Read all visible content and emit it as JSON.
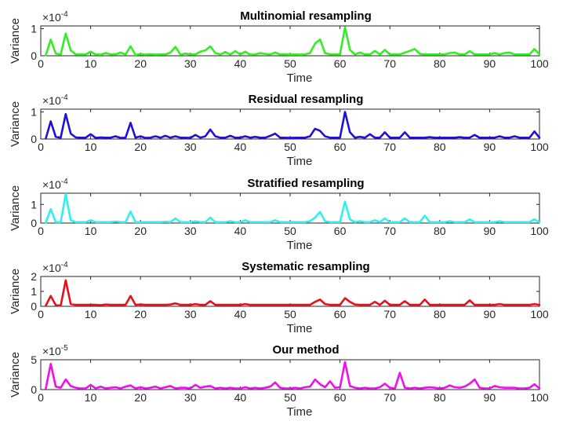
{
  "chart_data": [
    {
      "type": "line",
      "title": "Multinomial resampling",
      "xlabel": "Time",
      "ylabel": "Variance",
      "exponent": "-4",
      "color": "#33ee22",
      "xlim": [
        0,
        100
      ],
      "ylim": [
        0,
        1.1
      ],
      "xticks": [
        "0",
        "10",
        "20",
        "30",
        "40",
        "50",
        "60",
        "70",
        "80",
        "90",
        "100"
      ],
      "yticks": [
        {
          "v": 0,
          "label": "0"
        },
        {
          "v": 1,
          "label": "1"
        }
      ],
      "x": [
        1,
        2,
        3,
        4,
        5,
        6,
        7,
        8,
        9,
        10,
        11,
        12,
        13,
        14,
        15,
        16,
        17,
        18,
        19,
        20,
        21,
        22,
        23,
        24,
        25,
        26,
        27,
        28,
        29,
        30,
        31,
        32,
        33,
        34,
        35,
        36,
        37,
        38,
        39,
        40,
        41,
        42,
        43,
        44,
        45,
        46,
        47,
        48,
        49,
        50,
        51,
        52,
        53,
        54,
        55,
        56,
        57,
        58,
        59,
        60,
        61,
        62,
        63,
        64,
        65,
        66,
        67,
        68,
        69,
        70,
        71,
        72,
        73,
        74,
        75,
        76,
        77,
        78,
        79,
        80,
        81,
        82,
        83,
        84,
        85,
        86,
        87,
        88,
        89,
        90,
        91,
        92,
        93,
        94,
        95,
        96,
        97,
        98,
        99,
        100
      ],
      "y": [
        0.02,
        0.6,
        0.08,
        0.05,
        0.82,
        0.2,
        0.05,
        0.05,
        0.05,
        0.15,
        0.05,
        0.04,
        0.1,
        0.05,
        0.05,
        0.12,
        0.05,
        0.35,
        0.03,
        0.07,
        0.04,
        0.06,
        0.04,
        0.05,
        0.05,
        0.12,
        0.33,
        0.04,
        0.08,
        0.05,
        0.05,
        0.15,
        0.2,
        0.35,
        0.1,
        0.05,
        0.14,
        0.05,
        0.17,
        0.05,
        0.15,
        0.04,
        0.05,
        0.1,
        0.07,
        0.05,
        0.12,
        0.05,
        0.05,
        0.04,
        0.05,
        0.04,
        0.05,
        0.1,
        0.45,
        0.6,
        0.1,
        0.05,
        0.05,
        0.05,
        1.05,
        0.22,
        0.05,
        0.12,
        0.05,
        0.05,
        0.18,
        0.05,
        0.22,
        0.05,
        0.05,
        0.05,
        0.12,
        0.18,
        0.25,
        0.07,
        0.05,
        0.05,
        0.05,
        0.05,
        0.05,
        0.1,
        0.12,
        0.05,
        0.05,
        0.17,
        0.05,
        0.05,
        0.05,
        0.05,
        0.1,
        0.05,
        0.1,
        0.12,
        0.05,
        0.05,
        0.05,
        0.05,
        0.25,
        0.05
      ]
    },
    {
      "type": "line",
      "title": "Residual resampling",
      "xlabel": "Time",
      "ylabel": "Variance",
      "exponent": "-4",
      "color": "#2010d8",
      "xlim": [
        0,
        100
      ],
      "ylim": [
        0,
        1.1
      ],
      "xticks": [
        "0",
        "10",
        "20",
        "30",
        "40",
        "50",
        "60",
        "70",
        "80",
        "90",
        "100"
      ],
      "yticks": [
        {
          "v": 0,
          "label": "0"
        },
        {
          "v": 1,
          "label": "1"
        }
      ],
      "x": [
        1,
        2,
        3,
        4,
        5,
        6,
        7,
        8,
        9,
        10,
        11,
        12,
        13,
        14,
        15,
        16,
        17,
        18,
        19,
        20,
        21,
        22,
        23,
        24,
        25,
        26,
        27,
        28,
        29,
        30,
        31,
        32,
        33,
        34,
        35,
        36,
        37,
        38,
        39,
        40,
        41,
        42,
        43,
        44,
        45,
        46,
        47,
        48,
        49,
        50,
        51,
        52,
        53,
        54,
        55,
        56,
        57,
        58,
        59,
        60,
        61,
        62,
        63,
        64,
        65,
        66,
        67,
        68,
        69,
        70,
        71,
        72,
        73,
        74,
        75,
        76,
        77,
        78,
        79,
        80,
        81,
        82,
        83,
        84,
        85,
        86,
        87,
        88,
        89,
        90,
        91,
        92,
        93,
        94,
        95,
        96,
        97,
        98,
        99,
        100
      ],
      "y": [
        0.02,
        0.65,
        0.08,
        0.05,
        0.92,
        0.2,
        0.06,
        0.05,
        0.05,
        0.18,
        0.04,
        0.06,
        0.05,
        0.05,
        0.1,
        0.04,
        0.05,
        0.6,
        0.05,
        0.1,
        0.04,
        0.05,
        0.1,
        0.05,
        0.12,
        0.05,
        0.1,
        0.05,
        0.05,
        0.04,
        0.15,
        0.05,
        0.1,
        0.35,
        0.1,
        0.05,
        0.05,
        0.12,
        0.05,
        0.05,
        0.1,
        0.05,
        0.08,
        0.05,
        0.05,
        0.12,
        0.2,
        0.05,
        0.05,
        0.04,
        0.05,
        0.05,
        0.05,
        0.1,
        0.38,
        0.3,
        0.1,
        0.05,
        0.05,
        0.05,
        1.0,
        0.25,
        0.05,
        0.08,
        0.05,
        0.18,
        0.05,
        0.05,
        0.25,
        0.05,
        0.05,
        0.05,
        0.25,
        0.05,
        0.05,
        0.05,
        0.05,
        0.07,
        0.05,
        0.05,
        0.05,
        0.05,
        0.05,
        0.07,
        0.05,
        0.05,
        0.15,
        0.05,
        0.05,
        0.05,
        0.05,
        0.1,
        0.05,
        0.05,
        0.1,
        0.05,
        0.05,
        0.05,
        0.28,
        0.05
      ]
    },
    {
      "type": "line",
      "title": "Stratified resampling",
      "xlabel": "Time",
      "ylabel": "Variance",
      "exponent": "-4",
      "color": "#30f0ee",
      "xlim": [
        0,
        100
      ],
      "ylim": [
        0,
        1.6
      ],
      "xticks": [
        "0",
        "10",
        "20",
        "30",
        "40",
        "50",
        "60",
        "70",
        "80",
        "90",
        "100"
      ],
      "yticks": [
        {
          "v": 0,
          "label": "0"
        },
        {
          "v": 1,
          "label": "1"
        }
      ],
      "x": [
        1,
        2,
        3,
        4,
        5,
        6,
        7,
        8,
        9,
        10,
        11,
        12,
        13,
        14,
        15,
        16,
        17,
        18,
        19,
        20,
        21,
        22,
        23,
        24,
        25,
        26,
        27,
        28,
        29,
        30,
        31,
        32,
        33,
        34,
        35,
        36,
        37,
        38,
        39,
        40,
        41,
        42,
        43,
        44,
        45,
        46,
        47,
        48,
        49,
        50,
        51,
        52,
        53,
        54,
        55,
        56,
        57,
        58,
        59,
        60,
        61,
        62,
        63,
        64,
        65,
        66,
        67,
        68,
        69,
        70,
        71,
        72,
        73,
        74,
        75,
        76,
        77,
        78,
        79,
        80,
        81,
        82,
        83,
        84,
        85,
        86,
        87,
        88,
        89,
        90,
        91,
        92,
        93,
        94,
        95,
        96,
        97,
        98,
        99,
        100
      ],
      "y": [
        0.02,
        0.75,
        0.05,
        0.05,
        1.55,
        0.15,
        0.05,
        0.05,
        0.05,
        0.15,
        0.05,
        0.05,
        0.05,
        0.05,
        0.08,
        0.05,
        0.05,
        0.62,
        0.05,
        0.05,
        0.05,
        0.05,
        0.05,
        0.05,
        0.07,
        0.05,
        0.25,
        0.05,
        0.05,
        0.05,
        0.1,
        0.05,
        0.05,
        0.3,
        0.05,
        0.05,
        0.05,
        0.1,
        0.05,
        0.05,
        0.15,
        0.05,
        0.05,
        0.05,
        0.05,
        0.05,
        0.15,
        0.05,
        0.05,
        0.05,
        0.05,
        0.05,
        0.05,
        0.1,
        0.3,
        0.6,
        0.1,
        0.05,
        0.05,
        0.05,
        1.15,
        0.2,
        0.05,
        0.1,
        0.05,
        0.05,
        0.15,
        0.05,
        0.25,
        0.05,
        0.05,
        0.05,
        0.25,
        0.05,
        0.05,
        0.05,
        0.4,
        0.05,
        0.05,
        0.05,
        0.05,
        0.1,
        0.05,
        0.05,
        0.05,
        0.2,
        0.05,
        0.05,
        0.05,
        0.05,
        0.05,
        0.1,
        0.05,
        0.05,
        0.05,
        0.05,
        0.05,
        0.05,
        0.2,
        0.05
      ]
    },
    {
      "type": "line",
      "title": "Systematic resampling",
      "xlabel": "Time",
      "ylabel": "Variance",
      "exponent": "-4",
      "color": "#e8101a",
      "xlim": [
        0,
        100
      ],
      "ylim": [
        0,
        2
      ],
      "xticks": [
        "0",
        "10",
        "20",
        "30",
        "40",
        "50",
        "60",
        "70",
        "80",
        "90",
        "100"
      ],
      "yticks": [
        {
          "v": 0,
          "label": "0"
        },
        {
          "v": 1,
          "label": "1"
        },
        {
          "v": 2,
          "label": "2"
        }
      ],
      "x": [
        1,
        2,
        3,
        4,
        5,
        6,
        7,
        8,
        9,
        10,
        11,
        12,
        13,
        14,
        15,
        16,
        17,
        18,
        19,
        20,
        21,
        22,
        23,
        24,
        25,
        26,
        27,
        28,
        29,
        30,
        31,
        32,
        33,
        34,
        35,
        36,
        37,
        38,
        39,
        40,
        41,
        42,
        43,
        44,
        45,
        46,
        47,
        48,
        49,
        50,
        51,
        52,
        53,
        54,
        55,
        56,
        57,
        58,
        59,
        60,
        61,
        62,
        63,
        64,
        65,
        66,
        67,
        68,
        69,
        70,
        71,
        72,
        73,
        74,
        75,
        76,
        77,
        78,
        79,
        80,
        81,
        82,
        83,
        84,
        85,
        86,
        87,
        88,
        89,
        90,
        91,
        92,
        93,
        94,
        95,
        96,
        97,
        98,
        99,
        100
      ],
      "y": [
        0.05,
        0.7,
        0.08,
        0.05,
        1.75,
        0.15,
        0.1,
        0.1,
        0.1,
        0.1,
        0.1,
        0.08,
        0.12,
        0.1,
        0.1,
        0.1,
        0.1,
        0.7,
        0.1,
        0.12,
        0.1,
        0.1,
        0.1,
        0.1,
        0.1,
        0.12,
        0.2,
        0.1,
        0.1,
        0.1,
        0.15,
        0.1,
        0.1,
        0.35,
        0.1,
        0.1,
        0.1,
        0.1,
        0.1,
        0.1,
        0.15,
        0.1,
        0.1,
        0.1,
        0.1,
        0.1,
        0.1,
        0.1,
        0.1,
        0.1,
        0.1,
        0.1,
        0.1,
        0.1,
        0.3,
        0.45,
        0.15,
        0.1,
        0.1,
        0.1,
        0.55,
        0.3,
        0.12,
        0.1,
        0.1,
        0.1,
        0.3,
        0.1,
        0.38,
        0.1,
        0.1,
        0.1,
        0.35,
        0.1,
        0.1,
        0.1,
        0.45,
        0.1,
        0.1,
        0.1,
        0.1,
        0.1,
        0.1,
        0.1,
        0.1,
        0.4,
        0.1,
        0.1,
        0.1,
        0.1,
        0.1,
        0.15,
        0.1,
        0.1,
        0.1,
        0.1,
        0.1,
        0.1,
        0.15,
        0.1
      ]
    },
    {
      "type": "line",
      "title": "Our method",
      "xlabel": "Time",
      "ylabel": "Variance",
      "exponent": "-5",
      "color": "#ee10ee",
      "xlim": [
        0,
        100
      ],
      "ylim": [
        0,
        5
      ],
      "xticks": [
        "0",
        "10",
        "20",
        "30",
        "40",
        "50",
        "60",
        "70",
        "80",
        "90",
        "100"
      ],
      "yticks": [
        {
          "v": 0,
          "label": "0"
        },
        {
          "v": 5,
          "label": "5"
        }
      ],
      "x": [
        1,
        2,
        3,
        4,
        5,
        6,
        7,
        8,
        9,
        10,
        11,
        12,
        13,
        14,
        15,
        16,
        17,
        18,
        19,
        20,
        21,
        22,
        23,
        24,
        25,
        26,
        27,
        28,
        29,
        30,
        31,
        32,
        33,
        34,
        35,
        36,
        37,
        38,
        39,
        40,
        41,
        42,
        43,
        44,
        45,
        46,
        47,
        48,
        49,
        50,
        51,
        52,
        53,
        54,
        55,
        56,
        57,
        58,
        59,
        60,
        61,
        62,
        63,
        64,
        65,
        66,
        67,
        68,
        69,
        70,
        71,
        72,
        73,
        74,
        75,
        76,
        77,
        78,
        79,
        80,
        81,
        82,
        83,
        84,
        85,
        86,
        87,
        88,
        89,
        90,
        91,
        92,
        93,
        94,
        95,
        96,
        97,
        98,
        99,
        100
      ],
      "y": [
        0.2,
        4.3,
        0.5,
        0.3,
        1.7,
        0.6,
        0.3,
        0.2,
        0.2,
        0.8,
        0.2,
        0.5,
        0.2,
        0.3,
        0.4,
        0.2,
        0.5,
        0.7,
        0.2,
        0.4,
        0.2,
        0.3,
        0.5,
        0.2,
        0.4,
        0.6,
        0.2,
        0.3,
        0.3,
        0.2,
        0.8,
        0.3,
        0.5,
        0.6,
        0.2,
        0.3,
        0.2,
        0.3,
        0.2,
        0.2,
        0.4,
        0.2,
        0.3,
        0.2,
        0.3,
        0.5,
        1.2,
        0.3,
        0.2,
        0.2,
        0.3,
        0.2,
        0.4,
        0.5,
        1.7,
        0.9,
        0.4,
        1.4,
        0.3,
        0.4,
        4.6,
        0.6,
        0.3,
        0.2,
        0.3,
        0.2,
        0.2,
        0.4,
        1.0,
        0.3,
        0.2,
        2.8,
        0.3,
        0.2,
        0.3,
        0.2,
        0.3,
        0.4,
        0.3,
        0.2,
        0.3,
        0.7,
        0.4,
        0.3,
        0.5,
        1.0,
        1.7,
        0.3,
        0.2,
        0.2,
        0.6,
        0.4,
        0.3,
        0.3,
        0.3,
        0.2,
        0.2,
        0.3,
        0.9,
        0.2
      ]
    }
  ]
}
